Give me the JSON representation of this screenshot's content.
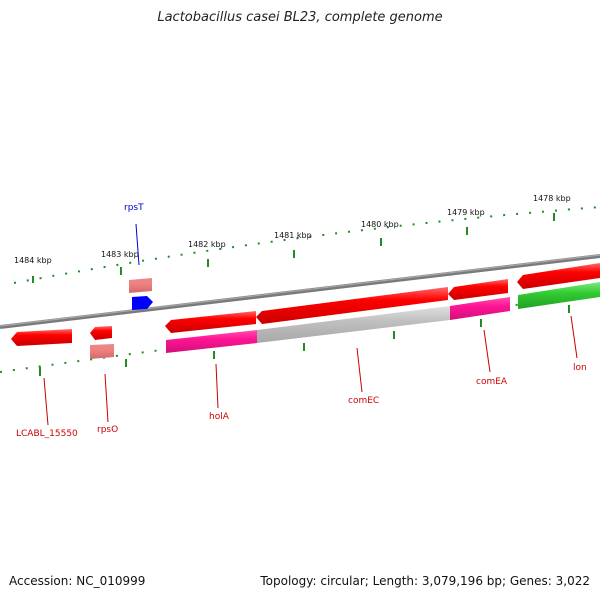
{
  "title": "Lactobacillus casei BL23, complete genome",
  "footer": {
    "accession": "Accession: NC_010999",
    "summary": "Topology: circular; Length: 3,079,196 bp; Genes: 3,022"
  },
  "kbp_ticks": [
    "1484 kbp",
    "1483 kbp",
    "1482 kbp",
    "1481 kbp",
    "1480 kbp",
    "1479 kbp",
    "1478 kbp"
  ],
  "gene_labels": [
    "LCABL_15550",
    "rpsO",
    "rpsT",
    "holA",
    "comEC",
    "comEA",
    "lon"
  ],
  "colors": {
    "cds": "#ff0000",
    "rna": "#f08080",
    "misc": "#0000ff",
    "magenta": "#ff1493",
    "gray": "#c0c0c0",
    "green": "#33cc33",
    "backbone": "#808080",
    "ticks": "#228b22",
    "label_red": "#cc0000",
    "label_blue": "#0000cc"
  }
}
